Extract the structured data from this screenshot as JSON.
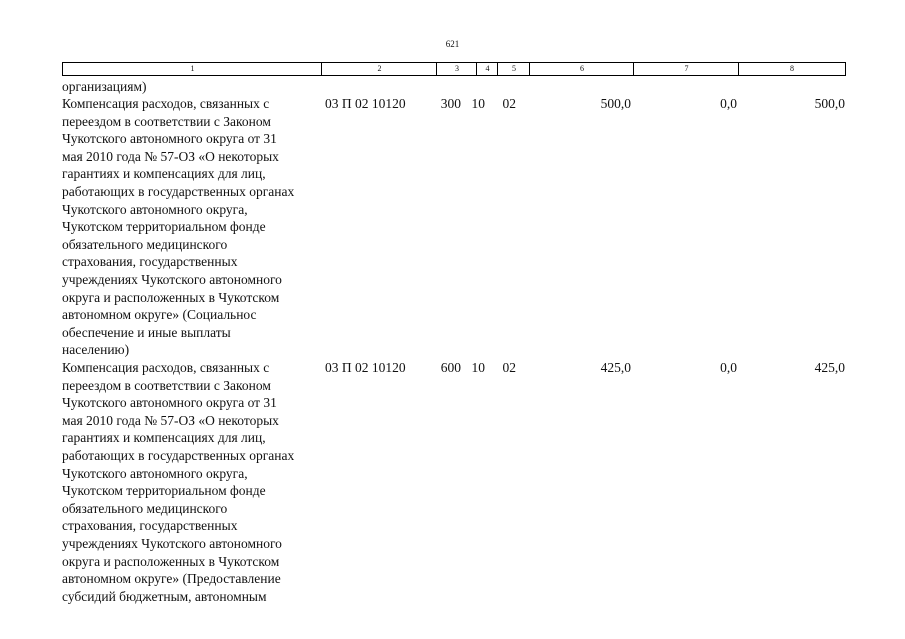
{
  "page_number": "621",
  "table": {
    "header": [
      "1",
      "2",
      "3",
      "4",
      "5",
      "6",
      "7",
      "8"
    ],
    "continuation": "организациям)",
    "rows": [
      {
        "name_lines": [
          "Компенсация расходов, связанных с",
          "переездом в соответствии с Законом",
          "Чукотского автономного округа от 31",
          "мая 2010 года № 57-ОЗ «О некоторых",
          "гарантиях и компенсациях для лиц,",
          "работающих в государственных органах",
          "Чукотского автономного округа,",
          "Чукотском территориальном фонде",
          "обязательного медицинского",
          "страхования, государственных",
          "учреждениях Чукотского автономного",
          "округа и расположенных в Чукотском",
          "автономном округе» (Социальнос",
          "обеспечение и иные выплаты",
          "населению)"
        ],
        "cells": [
          "03 П 02 10120",
          "300",
          "10",
          "02",
          "500,0",
          "0,0",
          "500,0"
        ]
      },
      {
        "name_lines": [
          "Компенсация расходов, связанных с",
          "переездом в соответствии с Законом",
          "Чукотского автономного округа от 31",
          "мая 2010 года № 57-ОЗ «О некоторых",
          "гарантиях и компенсациях для лиц,",
          "работающих в государственных органах",
          "Чукотского автономного округа,",
          "Чукотском территориальном фонде",
          "обязательного медицинского",
          "страхования, государственных",
          "учреждениях Чукотского автономного",
          "округа и расположенных в Чукотском",
          "автономном округе» (Предоставление",
          "субсидий бюджетным, автономным"
        ],
        "cells": [
          "03 П 02 10120",
          "600",
          "10",
          "02",
          "425,0",
          "0,0",
          "425,0"
        ]
      }
    ]
  }
}
